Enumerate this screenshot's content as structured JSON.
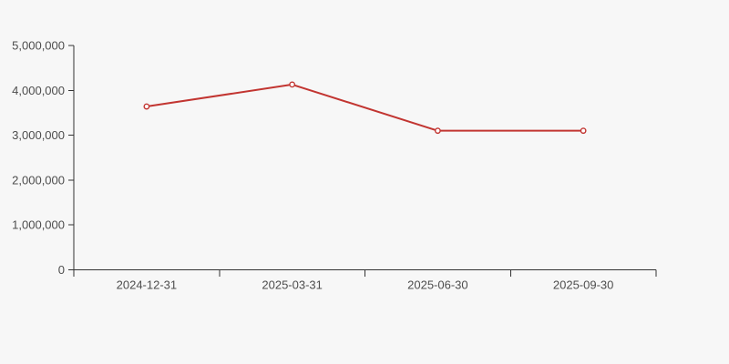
{
  "page": {
    "background_color": "#f7f7f7"
  },
  "chart_data": {
    "type": "line",
    "categories": [
      "2024-12-31",
      "2025-03-31",
      "2025-06-30",
      "2025-09-30"
    ],
    "series": [
      {
        "name": "value",
        "values": [
          3640000,
          4130000,
          3100000,
          3100000
        ],
        "color": "#c23531",
        "marker": "hollow-circle",
        "marker_fill": "#ffffff"
      }
    ],
    "ylim": [
      0,
      5000000
    ],
    "ytick_interval": 1000000,
    "ytick_labels": [
      "0",
      "1,000,000",
      "2,000,000",
      "3,000,000",
      "4,000,000",
      "5,000,000"
    ],
    "grid": false,
    "legend": "none",
    "axis_color": "#333333",
    "label_color": "#4d4d4d"
  }
}
